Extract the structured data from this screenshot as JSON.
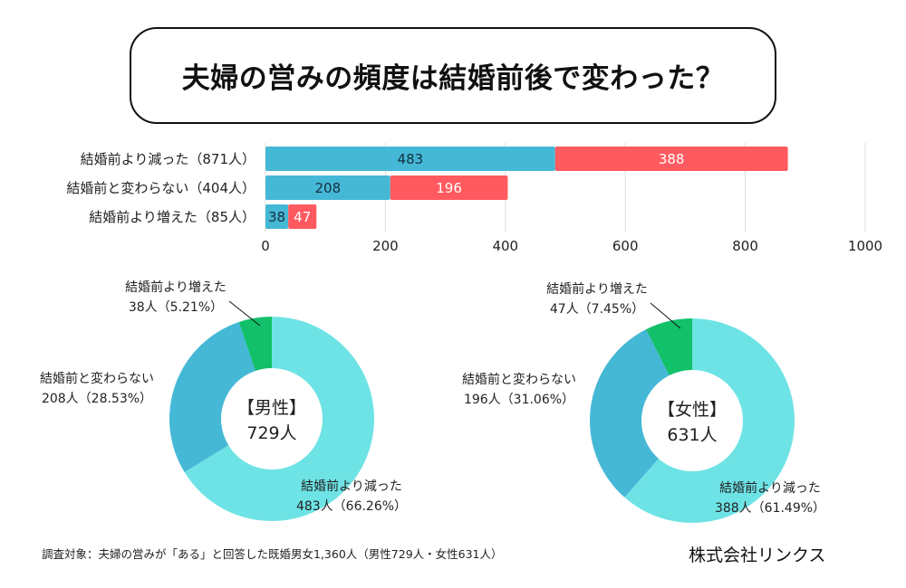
{
  "title": "夫婦の営みの頻度は結婚前後で変わった？",
  "colors": {
    "male_bar": "#45b8d6",
    "female_bar": "#ff5a5f",
    "decreased": "#6ee3e6",
    "unchanged": "#45b8d6",
    "increased": "#12c06a",
    "grid": "#dddddd"
  },
  "chart_data": [
    {
      "type": "bar",
      "orientation": "horizontal",
      "stacked": true,
      "categories": [
        "結婚前より減った（871人）",
        "結婚前と変わらない（404人）",
        "結婚前より増えた（85人）"
      ],
      "series": [
        {
          "name": "男性",
          "values": [
            483,
            208,
            38
          ]
        },
        {
          "name": "女性",
          "values": [
            388,
            196,
            47
          ]
        }
      ],
      "xlim": [
        0,
        1000
      ],
      "xticks": [
        0,
        200,
        400,
        600,
        800,
        1000
      ],
      "grid": true,
      "legend": "none"
    },
    {
      "type": "pie",
      "donut": true,
      "center_label": [
        "【男性】",
        "729人"
      ],
      "labels": [
        "結婚前より減った",
        "結婚前と変わらない",
        "結婚前より増えた"
      ],
      "values": [
        483,
        208,
        38
      ],
      "value_labels": [
        "483人（66.26%）",
        "208人（28.53%）",
        "38人（5.21%）"
      ],
      "percentages": [
        66.26,
        28.53,
        5.21
      ]
    },
    {
      "type": "pie",
      "donut": true,
      "center_label": [
        "【女性】",
        "631人"
      ],
      "labels": [
        "結婚前より減った",
        "結婚前と変わらない",
        "結婚前より増えた"
      ],
      "values": [
        388,
        196,
        47
      ],
      "value_labels": [
        "388人（61.49%）",
        "196人（31.06%）",
        "47人（7.45%）"
      ],
      "percentages": [
        61.49,
        31.06,
        7.45
      ]
    }
  ],
  "footer": {
    "note": "調査対象：夫婦の営みが「ある」と回答した既婚男女1,360人（男性729人・女性631人）",
    "company": "株式会社リンクス"
  }
}
